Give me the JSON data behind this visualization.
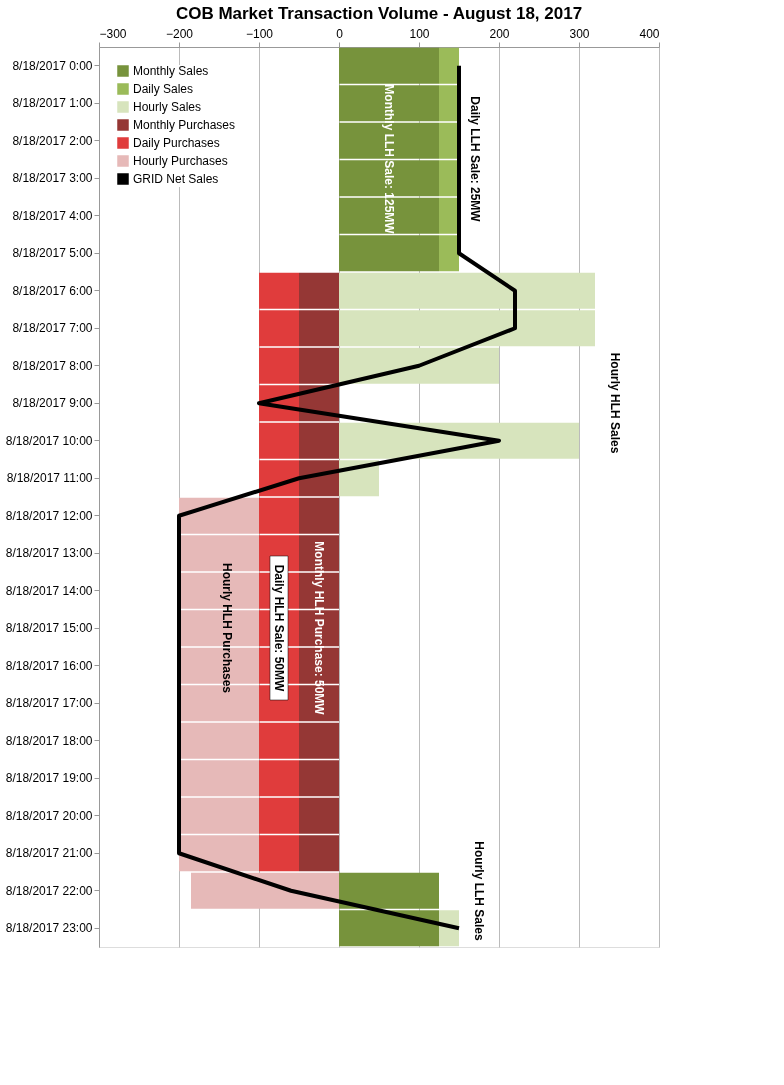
{
  "chart_data": {
    "type": "bar",
    "orientation": "horizontal",
    "stacked": true,
    "title": "COB Market Transaction Volume - August 18, 2017",
    "categories": [
      "8/18/2017 0:00",
      "8/18/2017 1:00",
      "8/18/2017 2:00",
      "8/18/2017 3:00",
      "8/18/2017 4:00",
      "8/18/2017 5:00",
      "8/18/2017 6:00",
      "8/18/2017 7:00",
      "8/18/2017 8:00",
      "8/18/2017 9:00",
      "8/18/2017 10:00",
      "8/18/2017 11:00",
      "8/18/2017 12:00",
      "8/18/2017 13:00",
      "8/18/2017 14:00",
      "8/18/2017 15:00",
      "8/18/2017 16:00",
      "8/18/2017 17:00",
      "8/18/2017 18:00",
      "8/18/2017 19:00",
      "8/18/2017 20:00",
      "8/18/2017 21:00",
      "8/18/2017 22:00",
      "8/18/2017 23:00"
    ],
    "series": [
      {
        "name": "Monthly Sales",
        "color": "#77933c",
        "values": [
          125,
          125,
          125,
          125,
          125,
          125,
          null,
          null,
          null,
          null,
          null,
          null,
          null,
          null,
          null,
          null,
          null,
          null,
          null,
          null,
          null,
          null,
          125,
          125
        ]
      },
      {
        "name": "Daily Sales",
        "color": "#9bbb59",
        "values": [
          25,
          25,
          25,
          25,
          25,
          25,
          null,
          null,
          null,
          null,
          null,
          null,
          null,
          null,
          null,
          null,
          null,
          null,
          null,
          null,
          null,
          null,
          null,
          null
        ]
      },
      {
        "name": "Hourly Sales",
        "color": "#d7e4bd",
        "values": [
          null,
          null,
          null,
          null,
          null,
          null,
          320,
          320,
          200,
          null,
          300,
          50,
          null,
          null,
          null,
          null,
          null,
          null,
          null,
          null,
          null,
          null,
          null,
          25
        ]
      },
      {
        "name": "Monthly Purchases",
        "color": "#953735",
        "values": [
          null,
          null,
          null,
          null,
          null,
          null,
          -50,
          -50,
          -50,
          -50,
          -50,
          -50,
          -50,
          -50,
          -50,
          -50,
          -50,
          -50,
          -50,
          -50,
          -50,
          -50,
          null,
          null
        ]
      },
      {
        "name": "Daily Purchases",
        "color": "#e03c3c",
        "values": [
          null,
          null,
          null,
          null,
          null,
          null,
          -50,
          -50,
          -50,
          -50,
          -50,
          -50,
          -50,
          -50,
          -50,
          -50,
          -50,
          -50,
          -50,
          -50,
          -50,
          -50,
          null,
          null
        ]
      },
      {
        "name": "Hourly Purchases",
        "color": "#e6b9b8",
        "values": [
          null,
          null,
          null,
          null,
          null,
          null,
          null,
          null,
          null,
          null,
          null,
          null,
          -100,
          -100,
          -100,
          -100,
          -100,
          -100,
          -100,
          -100,
          -100,
          -100,
          -185,
          null
        ]
      },
      {
        "name": "GRID Net Sales",
        "type": "line",
        "color": "#000000",
        "values": [
          150,
          150,
          150,
          150,
          150,
          150,
          220,
          220,
          100,
          -100,
          200,
          -50,
          -200,
          -200,
          -200,
          -200,
          -200,
          -200,
          -200,
          -200,
          -200,
          -200,
          -60,
          150
        ]
      }
    ],
    "xlim": [
      -300,
      400
    ],
    "xticks": [
      -300,
      -200,
      -100,
      0,
      100,
      200,
      300,
      400
    ],
    "grid": "x",
    "legend": "top left",
    "annotations": [
      "Daily LLH Sale: 25MW",
      "Monthly LLH Sale: 125MW",
      "Hourly HLH Sales",
      "Monthly HLH Purchase: 50MW",
      "Daily HLH Sale: 50MW",
      "Hourly HLH Purchases",
      "Hourly LLH Sales"
    ]
  }
}
